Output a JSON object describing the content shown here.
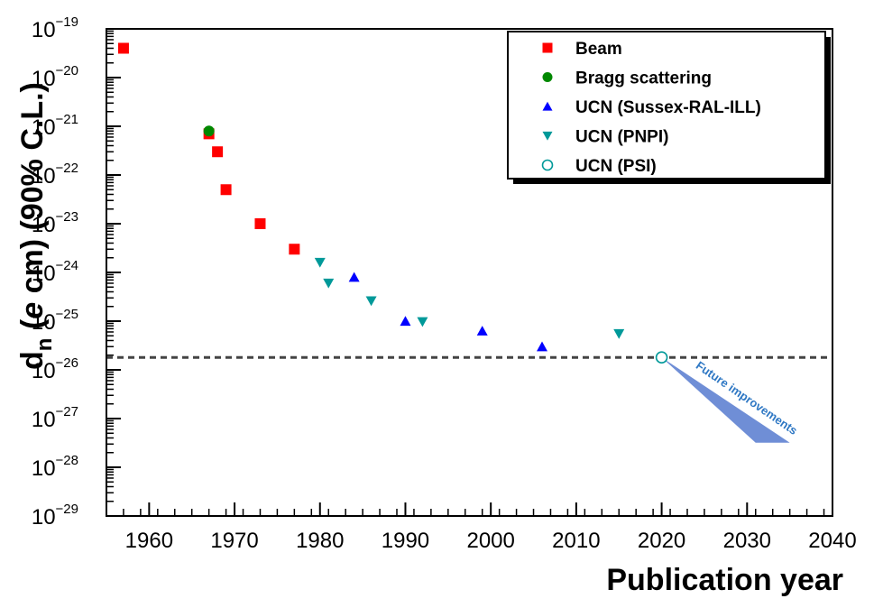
{
  "chart_data": {
    "type": "scatter",
    "xlabel": "Publication year",
    "ylabel_main": "d",
    "ylabel_sub": "n",
    "ylabel_open": " (",
    "ylabel_italic": "e",
    "ylabel_rest": " cm) (90% C.L.)",
    "xlim": [
      1955,
      2040
    ],
    "ylim": [
      1e-29,
      1e-19
    ],
    "y_scale": "log",
    "x_ticks": [
      1960,
      1970,
      1980,
      1990,
      2000,
      2010,
      2020,
      2030,
      2040
    ],
    "y_ticks": [
      {
        "exp": -19,
        "text": "10",
        "sup": "−19"
      },
      {
        "exp": -20,
        "text": "10",
        "sup": "−20"
      },
      {
        "exp": -21,
        "text": "10",
        "sup": "−21"
      },
      {
        "exp": -22,
        "text": "10",
        "sup": "−22"
      },
      {
        "exp": -23,
        "text": "10",
        "sup": "−23"
      },
      {
        "exp": -24,
        "text": "10",
        "sup": "−24"
      },
      {
        "exp": -25,
        "text": "10",
        "sup": "−25"
      },
      {
        "exp": -26,
        "text": "10",
        "sup": "−26"
      },
      {
        "exp": -27,
        "text": "10",
        "sup": "−27"
      },
      {
        "exp": -28,
        "text": "10",
        "sup": "−28"
      },
      {
        "exp": -29,
        "text": "10",
        "sup": "−29"
      }
    ],
    "grid": false,
    "legend_position": "top-right",
    "series": [
      {
        "name": "Beam",
        "marker": "square",
        "color": "#ff0000",
        "points": [
          [
            1957,
            4e-20
          ],
          [
            1967,
            7e-22
          ],
          [
            1968,
            3e-22
          ],
          [
            1969,
            5e-23
          ],
          [
            1973,
            1e-23
          ],
          [
            1977,
            3e-24
          ]
        ]
      },
      {
        "name": "Bragg scattering",
        "marker": "circle",
        "color": "#008800",
        "points": [
          [
            1967,
            8e-22
          ]
        ]
      },
      {
        "name": "UCN (Sussex-RAL-ILL)",
        "marker": "triangle-up",
        "color": "#0000ff",
        "points": [
          [
            1984,
            8e-25
          ],
          [
            1990,
            1e-25
          ],
          [
            1999,
            6.3e-26
          ],
          [
            2006,
            3e-26
          ]
        ]
      },
      {
        "name": "UCN (PNPI)",
        "marker": "triangle-down",
        "color": "#009999",
        "points": [
          [
            1980,
            1.6e-24
          ],
          [
            1981,
            6e-25
          ],
          [
            1986,
            2.6e-25
          ],
          [
            1992,
            9.7e-26
          ],
          [
            2015,
            5.5e-26
          ]
        ]
      },
      {
        "name": "UCN (PSI)",
        "marker": "open-circle",
        "color": "#009999",
        "points": [
          [
            2020,
            1.8e-26
          ]
        ]
      }
    ],
    "reference_line": {
      "y": 1.8e-26,
      "style": "dashed",
      "color": "#444444"
    },
    "future_band": {
      "label": "Future improvements",
      "color": "#6f8ed6",
      "polygon": [
        [
          2020,
          1.8e-26
        ],
        [
          2031,
          3.2e-28
        ],
        [
          2035,
          3.2e-28
        ]
      ]
    }
  }
}
